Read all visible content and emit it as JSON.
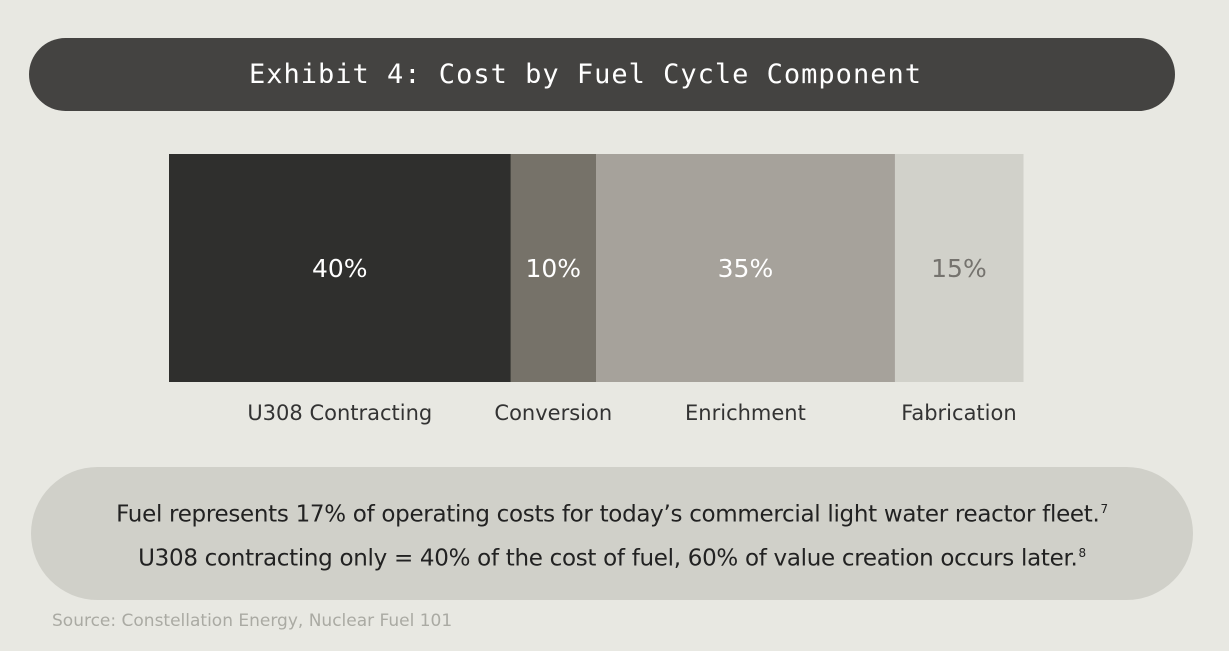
{
  "header": {
    "title": "Exhibit 4: Cost by Fuel Cycle Component"
  },
  "chart_data": {
    "type": "bar",
    "orientation": "horizontal-stacked",
    "categories": [
      "U308 Contracting",
      "Conversion",
      "Enrichment",
      "Fabrication"
    ],
    "values": [
      40,
      10,
      35,
      15
    ],
    "value_labels": [
      "40%",
      "10%",
      "35%",
      "15%"
    ],
    "colors": [
      "#2f2f2d",
      "#767269",
      "#a6a29b",
      "#d1d1ca"
    ],
    "label_colors": [
      "#ffffff",
      "#ffffff",
      "#ffffff",
      "#75736e"
    ],
    "title": "",
    "xlabel": "",
    "ylabel": "",
    "unit": "%",
    "grid": false,
    "legend": "none"
  },
  "callout": {
    "line1": "Fuel represents 17% of operating costs for today’s commercial light water reactor fleet.",
    "line1_ref": "7",
    "line2": "U308 contracting only = 40% of the cost of fuel, 60% of value creation occurs later.",
    "line2_ref": "8"
  },
  "footer": {
    "source": "Source: Constellation Energy, Nuclear Fuel 101"
  }
}
